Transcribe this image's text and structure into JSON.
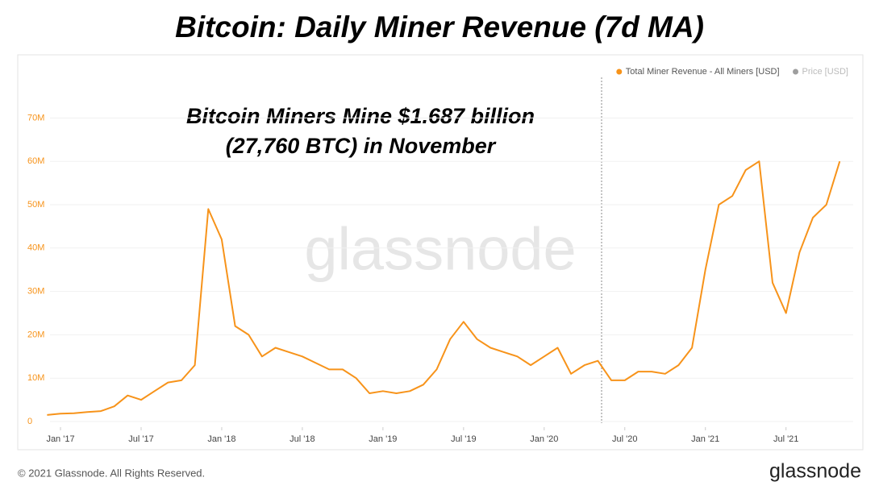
{
  "chart_data": {
    "type": "line",
    "title": "Bitcoin: Daily Miner Revenue (7d MA)",
    "annotation": [
      "Bitcoin Miners Mine $1.687 billion",
      "(27,760 BTC) in November"
    ],
    "watermark": "glassnode",
    "footer": "© 2021 Glassnode. All Rights Reserved.",
    "logo": "glassnode",
    "x": [
      "2016-12",
      "2017-01",
      "2017-02",
      "2017-03",
      "2017-04",
      "2017-05",
      "2017-06",
      "2017-07",
      "2017-08",
      "2017-09",
      "2017-10",
      "2017-11",
      "2017-12",
      "2018-01",
      "2018-02",
      "2018-03",
      "2018-04",
      "2018-05",
      "2018-06",
      "2018-07",
      "2018-08",
      "2018-09",
      "2018-10",
      "2018-11",
      "2018-12",
      "2019-01",
      "2019-02",
      "2019-03",
      "2019-04",
      "2019-05",
      "2019-06",
      "2019-07",
      "2019-08",
      "2019-09",
      "2019-10",
      "2019-11",
      "2019-12",
      "2020-01",
      "2020-02",
      "2020-03",
      "2020-04",
      "2020-05",
      "2020-06",
      "2020-07",
      "2020-08",
      "2020-09",
      "2020-10",
      "2020-11",
      "2020-12",
      "2021-01",
      "2021-02",
      "2021-03",
      "2021-04",
      "2021-05",
      "2021-06",
      "2021-07",
      "2021-08",
      "2021-09",
      "2021-10",
      "2021-11"
    ],
    "series": [
      {
        "name": "Total Miner Revenue - All Miners [USD]",
        "color": "#f7931a",
        "values": [
          1500000,
          1800000,
          1900000,
          2200000,
          2400000,
          3500000,
          6000000,
          5000000,
          7000000,
          9000000,
          9500000,
          13000000,
          49000000,
          42000000,
          22000000,
          20000000,
          15000000,
          17000000,
          16000000,
          15000000,
          13500000,
          12000000,
          12000000,
          10000000,
          6500000,
          7000000,
          6500000,
          7000000,
          8500000,
          12000000,
          19000000,
          23000000,
          19000000,
          17000000,
          16000000,
          15000000,
          13000000,
          15000000,
          17000000,
          11000000,
          13000000,
          14000000,
          9500000,
          9500000,
          11500000,
          11500000,
          11000000,
          13000000,
          17000000,
          35000000,
          50000000,
          52000000,
          58000000,
          60000000,
          32000000,
          25000000,
          39000000,
          47000000,
          50000000,
          60000000
        ]
      }
    ],
    "inactive_legend": [
      {
        "name": "Price [USD]",
        "color": "#9e9e9e"
      }
    ],
    "xlim": [
      "2016-11",
      "2021-12"
    ],
    "xticks": [
      {
        "value": "2017-01",
        "label": "Jan '17"
      },
      {
        "value": "2017-07",
        "label": "Jul '17"
      },
      {
        "value": "2018-01",
        "label": "Jan '18"
      },
      {
        "value": "2018-07",
        "label": "Jul '18"
      },
      {
        "value": "2019-01",
        "label": "Jan '19"
      },
      {
        "value": "2019-07",
        "label": "Jul '19"
      },
      {
        "value": "2020-01",
        "label": "Jan '20"
      },
      {
        "value": "2020-07",
        "label": "Jul '20"
      },
      {
        "value": "2021-01",
        "label": "Jan '21"
      },
      {
        "value": "2021-07",
        "label": "Jul '21"
      }
    ],
    "ylim": [
      0,
      75000000
    ],
    "yticks": [
      0,
      {
        "value": 10000000,
        "label": "10M"
      },
      {
        "value": 20000000,
        "label": "20M"
      },
      {
        "value": 30000000,
        "label": "30M"
      },
      {
        "value": 40000000,
        "label": "40M"
      },
      {
        "value": 50000000,
        "label": "50M"
      },
      {
        "value": 60000000,
        "label": "60M"
      },
      {
        "value": 70000000,
        "label": "70M"
      }
    ],
    "grid": true,
    "legend": "top-right"
  }
}
